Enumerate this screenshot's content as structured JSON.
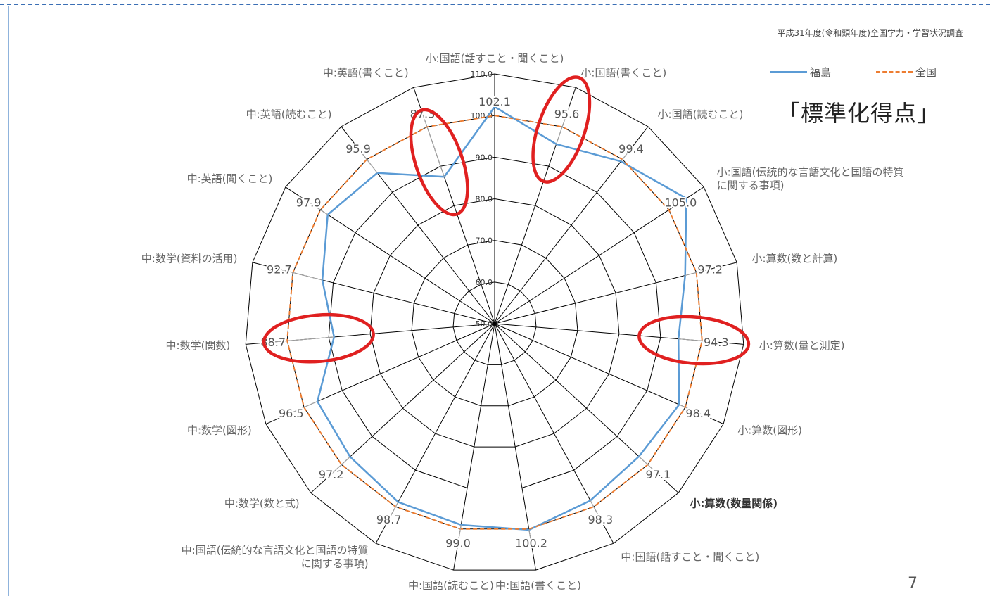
{
  "source_note": "平成31年度(令和頭年度)全国学力・学習状況調査",
  "page_number": "7",
  "title_badge": "「標準化得点」",
  "chart_data": {
    "type": "radar",
    "categories": [
      [
        "小:国語(話すこと・聞くこと)"
      ],
      [
        "小:国語(書くこと)"
      ],
      [
        "小:国語(読むこと)"
      ],
      [
        "小:国語(伝統的な言語文化と国語の特質",
        "に関する事項)"
      ],
      [
        "小:算数(数と計算)"
      ],
      [
        "小:算数(量と測定)"
      ],
      [
        "小:算数(図形)"
      ],
      [
        "小:算数(数量関係)"
      ],
      [
        "中:国語(話すこと・聞くこと)"
      ],
      [
        "中:国語(書くこと)"
      ],
      [
        "中:国語(読むこと)"
      ],
      [
        "中:国語(伝統的な言語文化と国語の特質",
        "に関する事項)"
      ],
      [
        "中:数学(数と式)"
      ],
      [
        "中:数学(図形)"
      ],
      [
        "中:数学(関数)"
      ],
      [
        "中:数学(資料の活用)"
      ],
      [
        "中:英語(聞くこと)"
      ],
      [
        "中:英語(読むこと)"
      ],
      [
        "中:英語(書くこと)"
      ]
    ],
    "series": [
      {
        "name": "福島",
        "color": "#5b9bd5",
        "style": "solid",
        "values": [
          102.1,
          95.6,
          99.4,
          105.0,
          97.2,
          94.3,
          98.4,
          97.1,
          98.3,
          100.2,
          99.0,
          98.7,
          97.2,
          96.5,
          88.7,
          92.7,
          97.9,
          95.9,
          87.3
        ]
      },
      {
        "name": "全国",
        "color": "#ed7d31",
        "style": "dashed",
        "values": [
          100,
          100,
          100,
          100,
          100,
          100,
          100,
          100,
          100,
          100,
          100,
          100,
          100,
          100,
          100,
          100,
          100,
          100,
          100
        ]
      }
    ],
    "data_labels": [
      "102.1",
      "95.6",
      "99.4",
      "105.0",
      "97.2",
      "94.3",
      "98.4",
      "97.1",
      "98.3",
      "100.2",
      "99.0",
      "98.7",
      "97.2",
      "96.5",
      "88.7",
      "92.7",
      "97.9",
      "95.9",
      "87.3"
    ],
    "r_ticks": [
      "50.0",
      "60.0",
      "70.0",
      "80.0",
      "90.0",
      "100.0",
      "110.0"
    ],
    "rlim": [
      50,
      110
    ],
    "bold_category_index": 7,
    "highlighted_indices": [
      1,
      5,
      14,
      18
    ],
    "highlight_color": "#e02020",
    "legend_position": "top-right"
  }
}
